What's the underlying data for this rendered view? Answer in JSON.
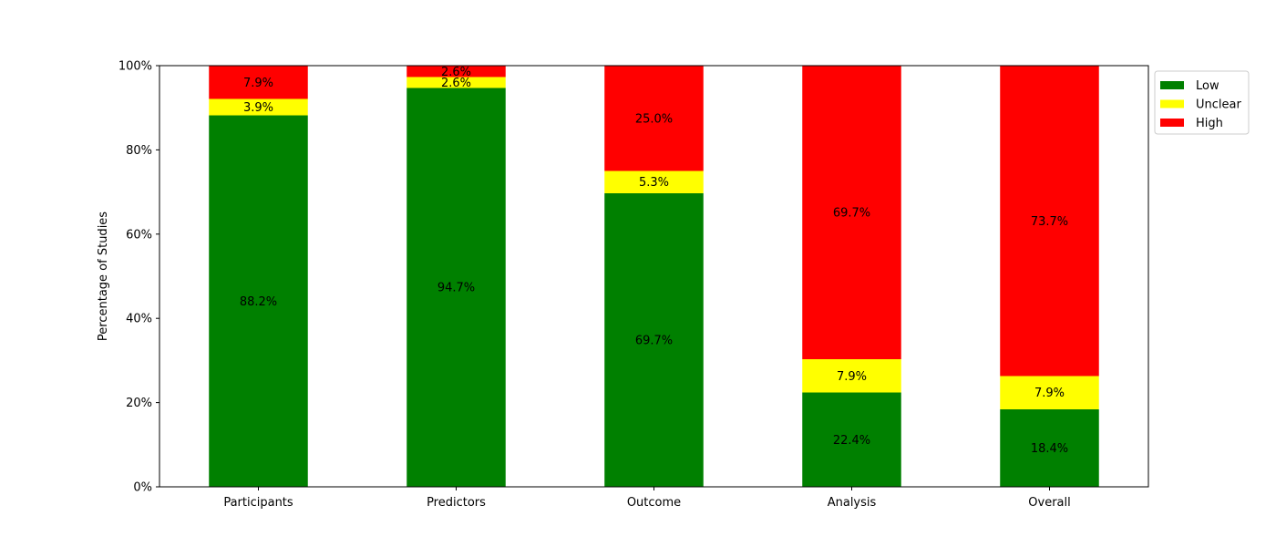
{
  "chart_data": {
    "type": "bar",
    "stacked": true,
    "title": "",
    "xlabel": "",
    "ylabel": "Percentage of Studies",
    "ylim": [
      0,
      100
    ],
    "yticks": [
      0,
      20,
      40,
      60,
      80,
      100
    ],
    "ytick_labels": [
      "0%",
      "20%",
      "40%",
      "60%",
      "80%",
      "100%"
    ],
    "categories": [
      "Participants",
      "Predictors",
      "Outcome",
      "Analysis",
      "Overall"
    ],
    "series": [
      {
        "name": "Low",
        "color": "#008000",
        "values": [
          88.2,
          94.7,
          69.7,
          22.4,
          18.4
        ],
        "labels": [
          "88.2%",
          "94.7%",
          "69.7%",
          "22.4%",
          "18.4%"
        ]
      },
      {
        "name": "Unclear",
        "color": "#ffff00",
        "values": [
          3.9,
          2.6,
          5.3,
          7.9,
          7.9
        ],
        "labels": [
          "3.9%",
          "2.6%",
          "5.3%",
          "7.9%",
          "7.9%"
        ]
      },
      {
        "name": "High",
        "color": "#ff0000",
        "values": [
          7.9,
          2.6,
          25.0,
          69.7,
          73.7
        ],
        "labels": [
          "7.9%",
          "2.6%",
          "25.0%",
          "69.7%",
          "73.7%"
        ]
      }
    ],
    "grid": false,
    "legend_position": "upper-right-outside"
  }
}
